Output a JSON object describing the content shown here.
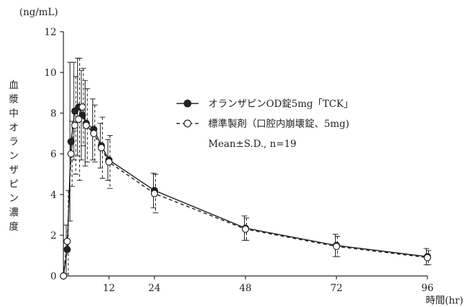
{
  "chart_data": {
    "type": "line",
    "ylabel_unit": "(ng/mL)",
    "ylabel": "血漿中オランザピン濃度",
    "xlabel": "時間(hr)",
    "xlim": [
      0,
      96
    ],
    "ylim": [
      0,
      12
    ],
    "x_ticks": [
      12,
      24,
      48,
      72,
      96
    ],
    "y_ticks": [
      0,
      2,
      4,
      6,
      8,
      10,
      12
    ],
    "x_tick_labels": [
      "12",
      "24",
      "48",
      "72",
      "96"
    ],
    "y_tick_labels": [
      "0",
      "2",
      "4",
      "6",
      "8",
      "10",
      "12"
    ],
    "grid": false,
    "legend_position": "upper-right",
    "legend_note": "Mean±S.D.,  n=19",
    "series": [
      {
        "name": "オランザピンOD錠5mg「TCK」",
        "style": "solid",
        "marker": "filled-circle",
        "color": "#222222",
        "x": [
          0,
          1,
          2,
          3,
          4,
          5,
          6,
          8,
          10,
          12,
          24,
          48,
          72,
          96
        ],
        "y": [
          0,
          1.3,
          6.6,
          8.1,
          8.3,
          7.9,
          7.5,
          7.2,
          6.4,
          5.7,
          4.2,
          2.35,
          1.5,
          0.95
        ],
        "sd": [
          0,
          1.2,
          3.9,
          2.4,
          2.4,
          2.2,
          2.1,
          1.5,
          1.1,
          1.0,
          0.85,
          0.6,
          0.55,
          0.4
        ]
      },
      {
        "name": "標準製剤（口腔内崩壊錠、5mg)",
        "style": "dashed",
        "marker": "open-circle",
        "color": "#222222",
        "x": [
          0,
          1,
          2,
          3,
          4,
          5,
          6,
          8,
          10,
          12,
          24,
          48,
          72,
          96
        ],
        "y": [
          0,
          1.7,
          6.0,
          7.4,
          7.7,
          8.3,
          7.4,
          7.0,
          6.3,
          5.6,
          4.05,
          2.3,
          1.45,
          0.9
        ],
        "sd": [
          0,
          2.5,
          1.6,
          2.4,
          3.0,
          1.9,
          1.8,
          1.4,
          1.5,
          1.3,
          0.95,
          0.55,
          0.5,
          0.35
        ]
      }
    ]
  }
}
